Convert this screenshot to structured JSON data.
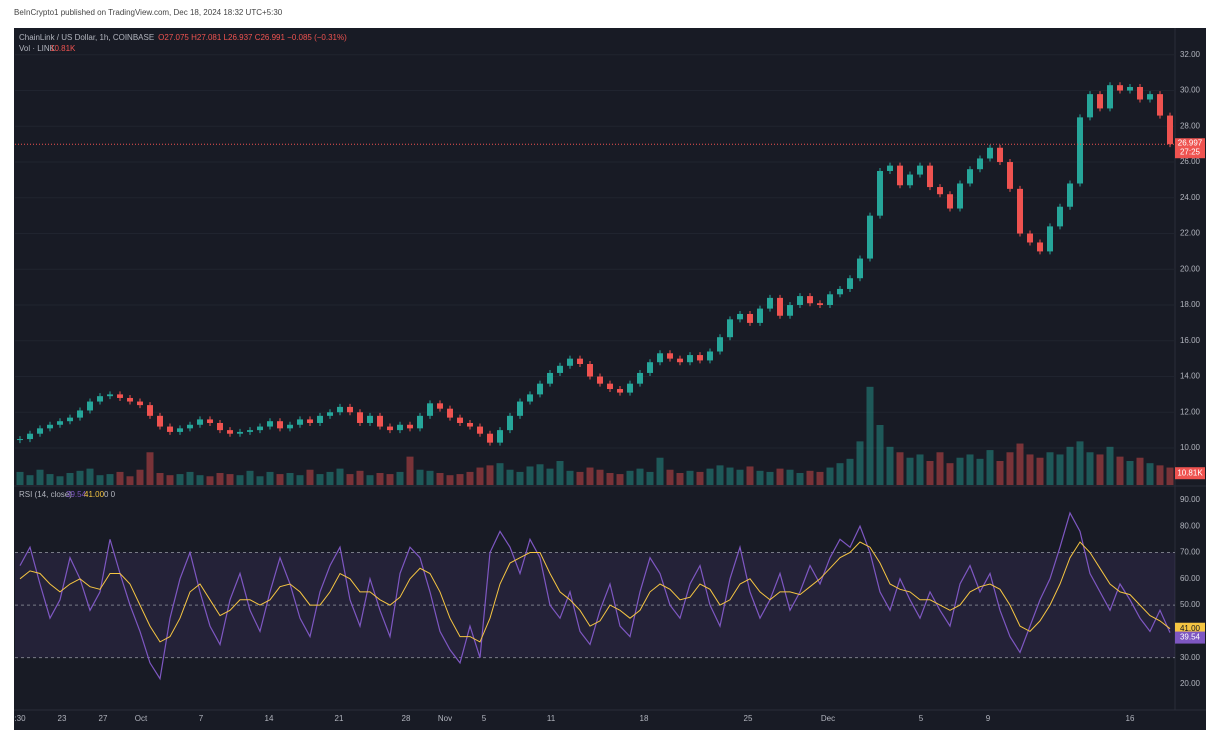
{
  "header": {
    "publisher": "BeInCrypto1 published on TradingView.com, Dec 18, 2024 18:32 UTC+5:30"
  },
  "chart_data": {
    "type": "candlestick",
    "title": "ChainLink / US Dollar, 1h, COINBASE",
    "ohlc_text": "O27.075 H27.081 L26.937 C26.991 −0.085 (−0.31%)",
    "xlim": [
      0,
      116
    ],
    "xticks": [
      {
        "value": 0.5,
        "label": ":30"
      },
      {
        "value": 4.7,
        "label": "23"
      },
      {
        "value": 8.8,
        "label": "27"
      },
      {
        "value": 12.6,
        "label": "Oct"
      },
      {
        "value": 18.6,
        "label": "7"
      },
      {
        "value": 25.4,
        "label": "14"
      },
      {
        "value": 32.4,
        "label": "21"
      },
      {
        "value": 39.1,
        "label": "28"
      },
      {
        "value": 43,
        "label": "Nov"
      },
      {
        "value": 46.9,
        "label": "5"
      },
      {
        "value": 53.6,
        "label": "11"
      },
      {
        "value": 62.9,
        "label": "18"
      },
      {
        "value": 73.3,
        "label": "25"
      },
      {
        "value": 81.3,
        "label": "Dec"
      },
      {
        "value": 90.6,
        "label": "5"
      },
      {
        "value": 97.3,
        "label": "9"
      },
      {
        "value": 111.5,
        "label": "16"
      }
    ],
    "price": {
      "values": [
        10.5,
        10.8,
        11.1,
        11.3,
        11.5,
        11.7,
        12.1,
        12.6,
        12.9,
        13.0,
        12.8,
        12.6,
        12.4,
        11.8,
        11.2,
        10.9,
        11.1,
        11.3,
        11.6,
        11.4,
        11.0,
        10.8,
        10.9,
        11.0,
        11.2,
        11.5,
        11.1,
        11.3,
        11.6,
        11.4,
        11.8,
        12.0,
        12.3,
        12.0,
        11.4,
        11.8,
        11.2,
        11.0,
        11.3,
        11.1,
        11.8,
        12.5,
        12.2,
        11.7,
        11.4,
        11.2,
        10.8,
        10.3,
        11.0,
        11.8,
        12.6,
        13.0,
        13.6,
        14.2,
        14.6,
        15.0,
        14.7,
        14.0,
        13.6,
        13.3,
        13.1,
        13.6,
        14.2,
        14.8,
        15.3,
        15.0,
        14.8,
        15.2,
        14.9,
        15.4,
        16.2,
        17.2,
        17.5,
        17.0,
        17.8,
        18.4,
        17.4,
        18.0,
        18.5,
        18.1,
        18.0,
        18.6,
        18.9,
        19.5,
        20.6,
        23.0,
        25.5,
        25.8,
        24.7,
        25.3,
        25.8,
        24.6,
        24.2,
        23.4,
        24.8,
        25.6,
        26.2,
        26.8,
        26.0,
        24.5,
        22.0,
        21.5,
        21.0,
        22.4,
        23.5,
        24.8,
        28.5,
        29.8,
        29.0,
        30.3,
        30.0,
        30.2,
        29.5,
        29.8,
        28.6,
        27.0
      ],
      "ylim": [
        7.93,
        33.5
      ],
      "yticks": [
        {
          "value": 10,
          "label": "10.00"
        },
        {
          "value": 12,
          "label": "12.00"
        },
        {
          "value": 14,
          "label": "14.00"
        },
        {
          "value": 16,
          "label": "16.00"
        },
        {
          "value": 18,
          "label": "18.00"
        },
        {
          "value": 20,
          "label": "20.00"
        },
        {
          "value": 22,
          "label": "22.00"
        },
        {
          "value": 24,
          "label": "24.00"
        },
        {
          "value": 26,
          "label": "26.00"
        },
        {
          "value": 28,
          "label": "28.00"
        },
        {
          "value": 30,
          "label": "30.00"
        },
        {
          "value": 32,
          "label": "32.00"
        }
      ],
      "last": 26.997,
      "countdown": "27:25",
      "up_color": "#26a69a",
      "down_color": "#ef5350"
    },
    "volume": {
      "title": "Vol · LINK",
      "values": [
        12,
        9,
        14,
        10,
        8,
        11,
        13,
        15,
        9,
        10,
        12,
        8,
        14,
        30,
        11,
        9,
        10,
        12,
        9,
        8,
        11,
        10,
        9,
        13,
        8,
        12,
        10,
        11,
        9,
        14,
        10,
        12,
        15,
        10,
        13,
        9,
        11,
        10,
        12,
        26,
        14,
        13,
        11,
        9,
        10,
        12,
        16,
        18,
        20,
        14,
        12,
        17,
        19,
        15,
        22,
        13,
        12,
        16,
        14,
        11,
        10,
        13,
        15,
        12,
        25,
        14,
        11,
        13,
        12,
        15,
        18,
        16,
        14,
        17,
        13,
        12,
        15,
        14,
        11,
        13,
        12,
        16,
        20,
        24,
        40,
        90,
        55,
        35,
        30,
        25,
        28,
        22,
        30,
        20,
        25,
        28,
        24,
        32,
        22,
        30,
        38,
        28,
        25,
        30,
        28,
        35,
        40,
        30,
        28,
        35,
        26,
        22,
        25,
        20,
        18,
        16
      ],
      "ylim": [
        0,
        110
      ],
      "last": {
        "value": 10.81,
        "label": "10.81K"
      }
    },
    "rsi": {
      "title": "RSI (14, close)",
      "values": [
        65,
        72,
        58,
        45,
        52,
        68,
        60,
        48,
        55,
        75,
        62,
        50,
        40,
        28,
        22,
        45,
        60,
        70,
        55,
        42,
        35,
        52,
        62,
        48,
        40,
        55,
        68,
        58,
        45,
        38,
        55,
        65,
        72,
        52,
        42,
        60,
        48,
        38,
        62,
        72,
        68,
        55,
        40,
        33,
        28,
        42,
        30,
        70,
        78,
        72,
        62,
        75,
        68,
        50,
        45,
        55,
        40,
        35,
        48,
        58,
        42,
        38,
        55,
        68,
        62,
        50,
        45,
        58,
        65,
        50,
        42,
        60,
        72,
        55,
        45,
        52,
        62,
        48,
        55,
        65,
        58,
        68,
        75,
        72,
        80,
        70,
        55,
        48,
        60,
        52,
        45,
        55,
        48,
        42,
        58,
        65,
        55,
        62,
        48,
        38,
        32,
        42,
        52,
        60,
        72,
        85,
        78,
        62,
        55,
        48,
        58,
        52,
        45,
        40,
        48,
        39.54
      ],
      "ma_values": [
        60,
        63,
        62,
        58,
        55,
        58,
        60,
        57,
        56,
        62,
        62,
        58,
        50,
        42,
        36,
        38,
        45,
        55,
        58,
        52,
        46,
        48,
        52,
        52,
        50,
        52,
        57,
        58,
        55,
        50,
        50,
        55,
        62,
        60,
        55,
        55,
        52,
        50,
        53,
        60,
        64,
        62,
        55,
        45,
        38,
        38,
        36,
        45,
        58,
        66,
        68,
        70,
        70,
        62,
        55,
        52,
        48,
        42,
        44,
        50,
        48,
        45,
        48,
        55,
        58,
        56,
        52,
        53,
        58,
        56,
        50,
        52,
        58,
        60,
        55,
        52,
        55,
        55,
        54,
        57,
        60,
        64,
        68,
        70,
        74,
        72,
        66,
        58,
        56,
        55,
        52,
        52,
        50,
        48,
        50,
        55,
        57,
        58,
        56,
        50,
        42,
        40,
        44,
        50,
        58,
        68,
        74,
        70,
        64,
        58,
        55,
        54,
        50,
        46,
        44,
        41
      ],
      "ma_last_label": "41.00",
      "extra": "0  0",
      "color": "#7e57c2",
      "ma_color": "#f5c542",
      "bands": [
        70,
        50,
        30
      ],
      "ylim": [
        10.1,
        94.9
      ],
      "yticks": [
        {
          "value": 20,
          "label": "20.00"
        },
        {
          "value": 30,
          "label": "30.00"
        },
        {
          "value": 40,
          "label": "40.00"
        },
        {
          "value": 50,
          "label": "50.00"
        },
        {
          "value": 60,
          "label": "60.00"
        },
        {
          "value": 70,
          "label": "70.00"
        },
        {
          "value": 80,
          "label": "80.00"
        },
        {
          "value": 90,
          "label": "90.00"
        }
      ]
    }
  }
}
